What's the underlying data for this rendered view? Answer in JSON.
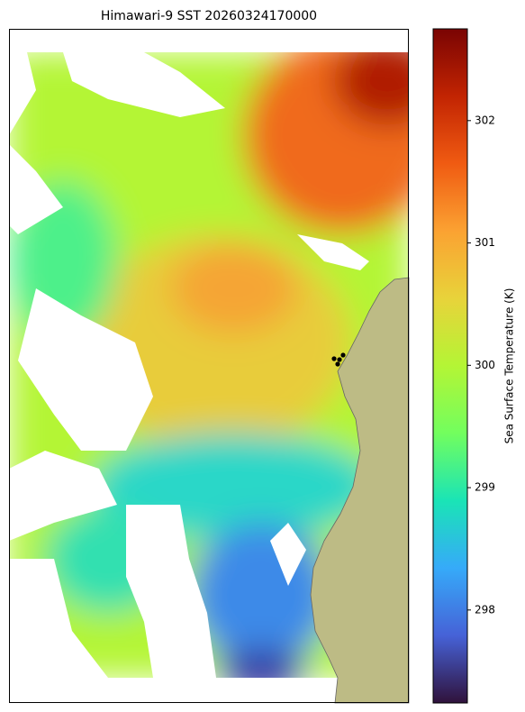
{
  "chart_data": {
    "type": "heatmap-map",
    "title": "Himawari-9 SST 20260324170000",
    "colorbar": {
      "label": "Sea Surface Temperature (K)",
      "clim": [
        297.24,
        302.75
      ],
      "ticks": [
        298,
        299,
        300,
        301,
        302
      ]
    }
  }
}
